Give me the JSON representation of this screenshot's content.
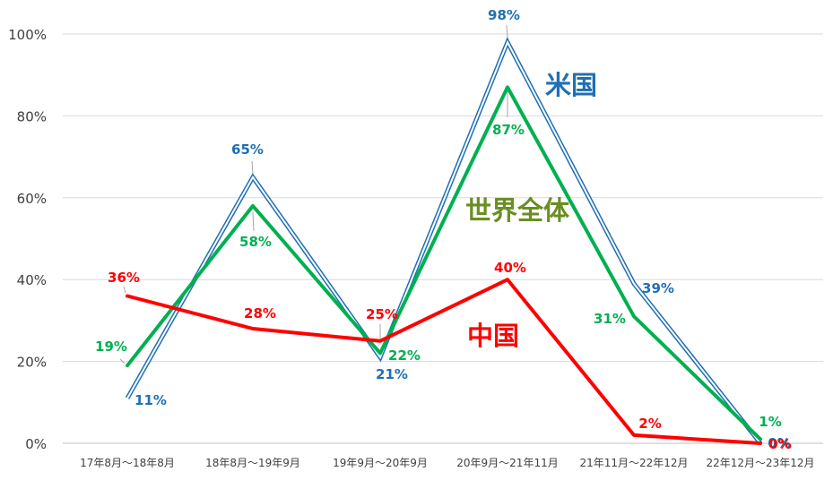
{
  "chart_data": {
    "type": "line",
    "categories": [
      "17年8月～18年8月",
      "18年8月～19年9月",
      "19年9月～20年9月",
      "20年9月～21年11月",
      "21年11月～22年12月",
      "22年12月～23年12月"
    ],
    "ylim": [
      0,
      100
    ],
    "yticks": [
      0,
      20,
      40,
      60,
      80,
      100
    ],
    "ytick_labels": [
      "0%",
      "20%",
      "40%",
      "60%",
      "80%",
      "100%"
    ],
    "grid": true,
    "series": [
      {
        "name": "米国",
        "color": "#1f6fb5",
        "style": "double",
        "values": [
          11,
          65,
          21,
          98,
          39,
          0
        ],
        "labels": [
          "11%",
          "65%",
          "21%",
          "98%",
          "39%",
          "0%"
        ]
      },
      {
        "name": "世界全体",
        "color": "#00b050",
        "label_color": "#6a8e23",
        "style": "solid",
        "values": [
          19,
          58,
          22,
          87,
          31,
          1
        ],
        "labels": [
          "19%",
          "58%",
          "22%",
          "87%",
          "31%",
          "1%"
        ]
      },
      {
        "name": "中国",
        "color": "#ff0000",
        "style": "solid",
        "values": [
          36,
          28,
          25,
          40,
          2,
          0
        ],
        "labels": [
          "36%",
          "28%",
          "25%",
          "40%",
          "2%",
          "0%"
        ]
      }
    ]
  }
}
